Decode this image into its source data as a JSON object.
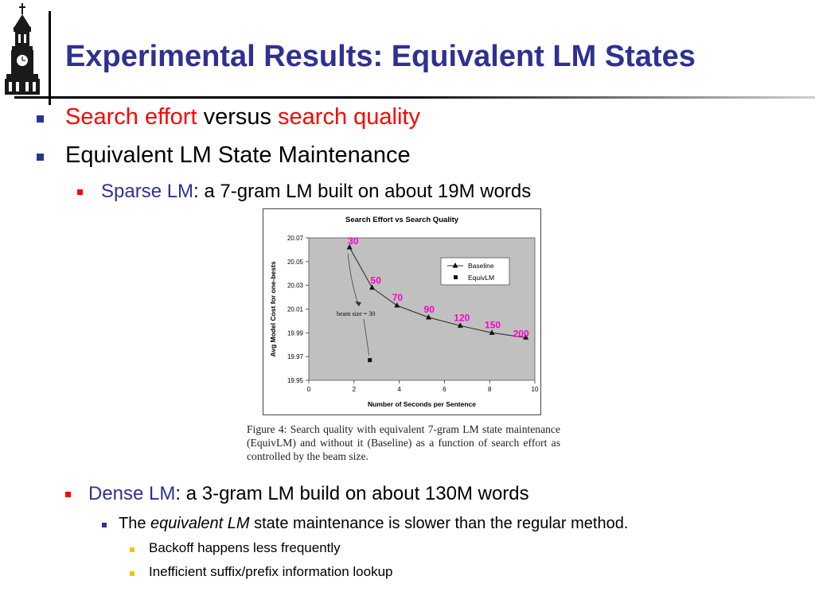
{
  "slide": {
    "title": "Experimental Results: Equivalent LM States"
  },
  "bullets": {
    "b1_part1": "Search effort",
    "b1_part2": " versus ",
    "b1_part3": "search quality",
    "b2": "Equivalent LM State Maintenance",
    "b3_part1": "Sparse LM",
    "b3_part2": ": a 7-gram LM built on about 19M words",
    "b4_part1": "Dense LM",
    "b4_part2": ": a 3-gram LM build on about 130M words",
    "b5_part1": "The ",
    "b5_part2": "equivalent LM",
    "b5_part3": " state maintenance is slower than the regular method.",
    "b6": "Backoff happens less frequently",
    "b7": "Inefficient suffix/prefix information lookup"
  },
  "figure": {
    "caption": "Figure 4: Search quality with equivalent 7-gram LM state maintenance (EquivLM) and without it (Baseline) as a function of search effort as controlled by the beam size.",
    "annotation": "beam size = 30"
  },
  "chart_data": {
    "type": "line",
    "title": "Search Effort vs Search Quality",
    "xlabel": "Number of Seconds per Sentence",
    "ylabel": "Avg Model Cost for one-bests",
    "xlim": [
      0,
      10
    ],
    "ylim": [
      19.95,
      20.07
    ],
    "x_ticks": [
      "0",
      "2",
      "4",
      "6",
      "8",
      "10"
    ],
    "y_ticks": [
      "19.95",
      "19.97",
      "19.99",
      "20.01",
      "20.03",
      "20.05",
      "20.07"
    ],
    "grid": false,
    "legend_position": "top-right",
    "plot_bg": "#c0c0c0",
    "label_color": "#ff00cc",
    "series": [
      {
        "name": "Baseline",
        "marker": "triangle",
        "x": [
          1.8,
          2.8,
          3.9,
          5.3,
          6.7,
          8.1,
          9.6
        ],
        "y": [
          20.062,
          20.028,
          20.013,
          20.003,
          19.996,
          19.99,
          19.986
        ],
        "labels": [
          "30",
          "50",
          "70",
          "90",
          "120",
          "150",
          "200"
        ]
      },
      {
        "name": "EquivLM",
        "marker": "square",
        "x": [
          2.7
        ],
        "y": [
          19.967
        ]
      }
    ]
  }
}
